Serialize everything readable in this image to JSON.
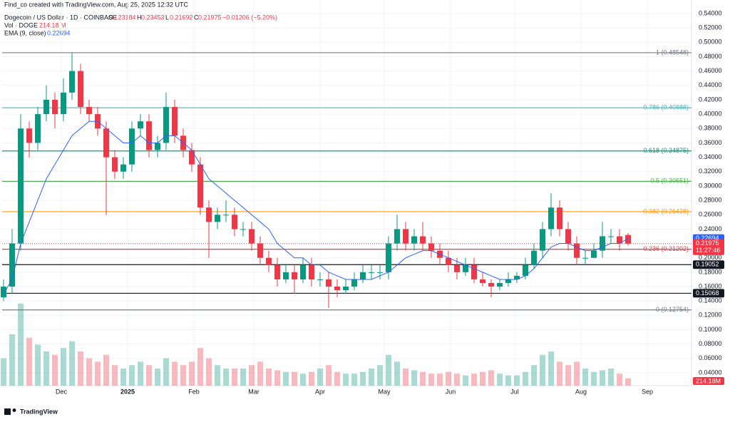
{
  "header": {
    "credit": "Find_co created with TradingView.com, Aug 25, 2025 12:32 UTC",
    "keys": [
      "O",
      "H",
      "L",
      "C"
    ],
    "change": "−0.01206 (−5.20%)",
    "countdown": "11:27:46",
    "logo": "TradingView"
  },
  "chart_data": {
    "type": "candlestick",
    "title": "Dogecoin / US Dollar · 1D · COINBASE",
    "up_color": "#089981",
    "down_color": "#f23645",
    "open": [
      0.145,
      0.16,
      0.22,
      0.38,
      0.36,
      0.4,
      0.42,
      0.4,
      0.43,
      0.46,
      0.41,
      0.4,
      0.38,
      0.34,
      0.32,
      0.33,
      0.38,
      0.39,
      0.35,
      0.36,
      0.41,
      0.37,
      0.35,
      0.33,
      0.27,
      0.25,
      0.26,
      0.26,
      0.24,
      0.24,
      0.22,
      0.2,
      0.19,
      0.17,
      0.18,
      0.17,
      0.19,
      0.17,
      0.17,
      0.16,
      0.155,
      0.16,
      0.17,
      0.18,
      0.18,
      0.18,
      0.22,
      0.24,
      0.22,
      0.23,
      0.22,
      0.21,
      0.2,
      0.19,
      0.18,
      0.19,
      0.17,
      0.165,
      0.16,
      0.165,
      0.17,
      0.175,
      0.19,
      0.21,
      0.24,
      0.27,
      0.24,
      0.22,
      0.2,
      0.2,
      0.21,
      0.23,
      0.23,
      0.23184
    ],
    "high": [
      0.17,
      0.24,
      0.4,
      0.39,
      0.41,
      0.44,
      0.43,
      0.45,
      0.485,
      0.47,
      0.42,
      0.41,
      0.39,
      0.35,
      0.34,
      0.39,
      0.4,
      0.4,
      0.37,
      0.43,
      0.42,
      0.38,
      0.36,
      0.34,
      0.28,
      0.27,
      0.28,
      0.27,
      0.25,
      0.25,
      0.23,
      0.21,
      0.2,
      0.19,
      0.19,
      0.2,
      0.2,
      0.18,
      0.18,
      0.17,
      0.17,
      0.18,
      0.19,
      0.19,
      0.19,
      0.23,
      0.26,
      0.25,
      0.24,
      0.25,
      0.23,
      0.22,
      0.21,
      0.2,
      0.2,
      0.2,
      0.18,
      0.17,
      0.17,
      0.18,
      0.18,
      0.2,
      0.22,
      0.25,
      0.29,
      0.28,
      0.25,
      0.23,
      0.21,
      0.22,
      0.25,
      0.24,
      0.24,
      0.23453
    ],
    "low": [
      0.14,
      0.15,
      0.21,
      0.34,
      0.35,
      0.39,
      0.38,
      0.39,
      0.42,
      0.4,
      0.39,
      0.37,
      0.26,
      0.31,
      0.31,
      0.32,
      0.37,
      0.34,
      0.34,
      0.35,
      0.36,
      0.34,
      0.32,
      0.26,
      0.2,
      0.24,
      0.25,
      0.23,
      0.23,
      0.21,
      0.19,
      0.18,
      0.16,
      0.165,
      0.15,
      0.165,
      0.16,
      0.16,
      0.13,
      0.145,
      0.15,
      0.155,
      0.165,
      0.17,
      0.17,
      0.17,
      0.21,
      0.21,
      0.21,
      0.21,
      0.2,
      0.19,
      0.18,
      0.17,
      0.175,
      0.165,
      0.16,
      0.145,
      0.155,
      0.16,
      0.165,
      0.17,
      0.185,
      0.2,
      0.23,
      0.23,
      0.21,
      0.19,
      0.19,
      0.2,
      0.2,
      0.22,
      0.21,
      0.21692
    ],
    "close": [
      0.16,
      0.22,
      0.38,
      0.36,
      0.4,
      0.42,
      0.4,
      0.43,
      0.46,
      0.41,
      0.4,
      0.38,
      0.34,
      0.32,
      0.33,
      0.38,
      0.39,
      0.35,
      0.36,
      0.41,
      0.37,
      0.35,
      0.33,
      0.27,
      0.25,
      0.26,
      0.26,
      0.24,
      0.24,
      0.22,
      0.2,
      0.19,
      0.17,
      0.18,
      0.17,
      0.19,
      0.17,
      0.17,
      0.16,
      0.155,
      0.16,
      0.17,
      0.18,
      0.18,
      0.18,
      0.22,
      0.24,
      0.22,
      0.23,
      0.22,
      0.21,
      0.2,
      0.19,
      0.18,
      0.19,
      0.17,
      0.165,
      0.16,
      0.165,
      0.17,
      0.175,
      0.19,
      0.21,
      0.24,
      0.27,
      0.24,
      0.22,
      0.2,
      0.2,
      0.21,
      0.23,
      0.23,
      0.22,
      0.21975
    ],
    "volume": {
      "name": "Vol · DOGE",
      "vlim": [
        0,
        2500
      ],
      "last_label": "214.18 M",
      "axis_label": "214.18M",
      "values": [
        800,
        1500,
        2400,
        1400,
        1200,
        1000,
        900,
        1100,
        1300,
        1000,
        800,
        700,
        900,
        600,
        500,
        600,
        700,
        600,
        500,
        800,
        700,
        600,
        700,
        1100,
        800,
        600,
        500,
        500,
        500,
        600,
        700,
        500,
        450,
        400,
        400,
        350,
        400,
        500,
        600,
        400,
        350,
        350,
        400,
        500,
        600,
        900,
        700,
        500,
        450,
        400,
        350,
        350,
        400,
        350,
        300,
        350,
        400,
        450,
        350,
        300,
        300,
        400,
        600,
        900,
        1000,
        700,
        600,
        700,
        500,
        400,
        450,
        500,
        350,
        214.18
      ]
    },
    "ema": {
      "name": "EMA (9, close)",
      "color": "#2962ff",
      "values": [
        0.15,
        0.17,
        0.22,
        0.25,
        0.28,
        0.31,
        0.33,
        0.35,
        0.37,
        0.38,
        0.39,
        0.39,
        0.38,
        0.37,
        0.36,
        0.36,
        0.37,
        0.36,
        0.36,
        0.37,
        0.37,
        0.36,
        0.35,
        0.33,
        0.31,
        0.3,
        0.29,
        0.28,
        0.27,
        0.26,
        0.25,
        0.24,
        0.22,
        0.21,
        0.2,
        0.2,
        0.19,
        0.19,
        0.18,
        0.175,
        0.17,
        0.17,
        0.17,
        0.17,
        0.175,
        0.18,
        0.19,
        0.2,
        0.205,
        0.21,
        0.21,
        0.205,
        0.2,
        0.195,
        0.19,
        0.185,
        0.18,
        0.175,
        0.17,
        0.17,
        0.17,
        0.175,
        0.185,
        0.2,
        0.215,
        0.22,
        0.22,
        0.215,
        0.21,
        0.21,
        0.215,
        0.22,
        0.22,
        0.22694
      ]
    },
    "fib_levels": [
      {
        "label": "1 (0.48548)",
        "value": 0.48548,
        "color": "#787b86"
      },
      {
        "label": "0.786 (0.40888)",
        "value": 0.40888,
        "color": "#3fb8c4"
      },
      {
        "label": "0.618 (0.34875)",
        "value": 0.34875,
        "color": "#089981"
      },
      {
        "label": "0.5 (0.30651)",
        "value": 0.30651,
        "color": "#4caf50"
      },
      {
        "label": "0.382 (0.26428)",
        "value": 0.26428,
        "color": "#ff9800"
      },
      {
        "label": "0.236 (0.21202)",
        "value": 0.21202,
        "color": "#f23645"
      },
      {
        "label": "0 (0.12754)",
        "value": 0.12754,
        "color": "#787b86"
      }
    ],
    "lines": [
      {
        "value": 0.19052,
        "label": "0.19052",
        "color": "#131722"
      },
      {
        "value": 0.15068,
        "label": "0.15068",
        "color": "#131722"
      }
    ],
    "ylim": [
      0.04,
      0.54
    ],
    "yticks": [
      {
        "value": 0.54,
        "label": "0.54000"
      },
      {
        "value": 0.52,
        "label": "0.52000"
      },
      {
        "value": 0.5,
        "label": "0.50000"
      },
      {
        "value": 0.48,
        "label": "0.48000"
      },
      {
        "value": 0.46,
        "label": "0.46000"
      },
      {
        "value": 0.44,
        "label": "0.44000"
      },
      {
        "value": 0.42,
        "label": "0.42000"
      },
      {
        "value": 0.4,
        "label": "0.40000"
      },
      {
        "value": 0.38,
        "label": "0.38000"
      },
      {
        "value": 0.36,
        "label": "0.36000"
      },
      {
        "value": 0.34,
        "label": "0.34000"
      },
      {
        "value": 0.32,
        "label": "0.32000"
      },
      {
        "value": 0.3,
        "label": "0.30000"
      },
      {
        "value": 0.28,
        "label": "0.28000"
      },
      {
        "value": 0.26,
        "label": "0.26000"
      },
      {
        "value": 0.24,
        "label": "0.24000"
      },
      {
        "value": 0.2,
        "label": "0.20000"
      },
      {
        "value": 0.18,
        "label": "0.18000"
      },
      {
        "value": 0.16,
        "label": "0.16000"
      },
      {
        "value": 0.14,
        "label": "0.14000"
      },
      {
        "value": 0.12,
        "label": "0.12000"
      },
      {
        "value": 0.1,
        "label": "0.10000"
      },
      {
        "value": 0.08,
        "label": "0.08000"
      },
      {
        "value": 0.06,
        "label": "0.06000"
      },
      {
        "value": 0.04,
        "label": "0.04000"
      }
    ],
    "xticks": [
      {
        "value": 6.75,
        "label": "Dec"
      },
      {
        "value": 14.5,
        "label": "2025"
      },
      {
        "value": 22.25,
        "label": "Feb"
      },
      {
        "value": 29.25,
        "label": "Mar"
      },
      {
        "value": 37,
        "label": "Apr"
      },
      {
        "value": 44.5,
        "label": "May"
      },
      {
        "value": 52.25,
        "label": "Jun"
      },
      {
        "value": 59.75,
        "label": "Jul"
      },
      {
        "value": 67.5,
        "label": "Aug"
      },
      {
        "value": 75.25,
        "label": "Sep"
      }
    ],
    "grid": true
  }
}
